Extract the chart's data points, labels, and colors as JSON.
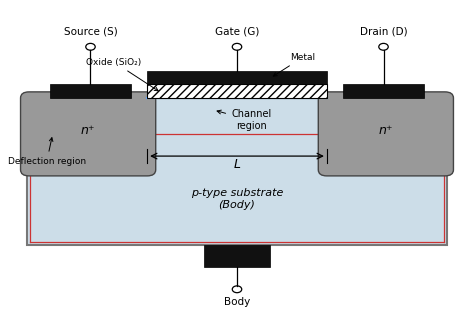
{
  "bg_color": "#ffffff",
  "substrate_color": "#ccdde8",
  "substrate_edge": "#888888",
  "n_region_color": "#999999",
  "n_region_edge": "#444444",
  "metal_color": "#111111",
  "oxide_hatch_color": "#000000",
  "channel_line_color": "#66aaff",
  "red_border_color": "#cc3333",
  "labels": {
    "source": "Source (S)",
    "gate": "Gate (G)",
    "drain": "Drain (D)",
    "oxide": "Oxide (SiO₂)",
    "metal": "Metal",
    "channel": "Channel\nregion",
    "L": "L",
    "deflection": "Deflection region",
    "substrate": "p-type substrate\n(Body)",
    "body": "Body",
    "n_left": "n⁺",
    "n_right": "n⁺"
  }
}
